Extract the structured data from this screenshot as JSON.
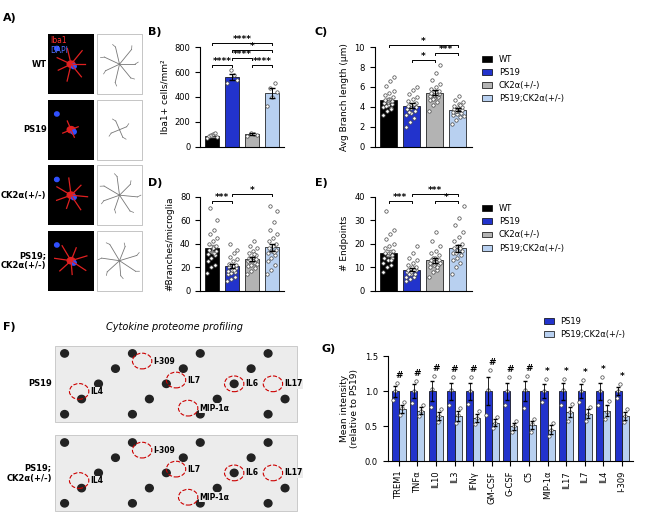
{
  "panels": {
    "A": {
      "title": "A)",
      "stains": [
        "Iba1",
        "DAPI"
      ],
      "rows": [
        "WT",
        "PS19",
        "CK2α(+/-)",
        "PS19;\nCK2α(+/-)"
      ]
    },
    "F": {
      "title": "F)",
      "subtitle": "Cytokine proteome profiling",
      "blots": [
        {
          "label": "PS19",
          "spots": [
            "IL4",
            "I-309",
            "IL7",
            "MIP-1α",
            "IL6",
            "IL17"
          ]
        },
        {
          "label": "PS19;\nCK2α(+/-)",
          "spots": [
            "IL4",
            "I-309",
            "IL7",
            "MIP-1α",
            "IL6",
            "IL17"
          ]
        }
      ]
    }
  },
  "chart_data": [
    {
      "type": "bar",
      "title": "B)",
      "ylabel": "Iba1+ cells/mm²",
      "categories": [
        null,
        null,
        null,
        null
      ],
      "tick_labels": "y",
      "ylim": [
        0,
        800
      ],
      "yticks": [
        0,
        200,
        400,
        600,
        800
      ],
      "series": [
        {
          "color": "#000000",
          "values": [
            90,
            null,
            null,
            null
          ],
          "errors": [
            15,
            null,
            null,
            null
          ],
          "points": [
            [
              70,
              85,
              95,
              105,
              110,
              80
            ],
            null,
            null,
            null
          ]
        },
        {
          "color": "#2233cc",
          "values": [
            null,
            560,
            null,
            null
          ],
          "errors": [
            null,
            25,
            null,
            null
          ],
          "points": [
            null,
            [
              510,
              540,
              575,
              615
            ],
            null,
            null
          ]
        },
        {
          "color": "#b3b3b3",
          "values": [
            null,
            null,
            100,
            null
          ],
          "errors": [
            null,
            null,
            8,
            null
          ],
          "points": [
            null,
            null,
            [
              90,
              98,
              105,
              112
            ],
            null
          ]
        },
        {
          "color": "#b8d0f0",
          "values": [
            null,
            null,
            null,
            430
          ],
          "errors": [
            null,
            null,
            null,
            40
          ],
          "points": [
            null,
            null,
            null,
            [
              330,
              400,
              440,
              470,
              510
            ]
          ]
        }
      ],
      "annotations": [
        {
          "from": 0,
          "to": 1,
          "label": "****"
        },
        {
          "from": 1,
          "to": 2,
          "label": "****"
        },
        {
          "from": 2,
          "to": 3,
          "label": "****"
        },
        {
          "from": 1,
          "to": 3,
          "label": "*"
        },
        {
          "from": 0,
          "to": 3,
          "label": "****"
        }
      ]
    },
    {
      "type": "bar",
      "title": "C)",
      "ylabel": "Avg Branch length (μm)",
      "categories": [
        null,
        null,
        null,
        null
      ],
      "tick_labels": "y",
      "legend": "upper left",
      "ylim": [
        0,
        10
      ],
      "yticks": [
        0,
        2,
        4,
        6,
        8,
        10
      ],
      "series": [
        {
          "name": "WT",
          "color": "#000000",
          "values": [
            4.7,
            null,
            null,
            null
          ],
          "errors": [
            0.2,
            null,
            null,
            null
          ],
          "points": [
            [
              3.2,
              3.6,
              3.9,
              4.0,
              4.2,
              4.3,
              4.4,
              4.5,
              4.6,
              4.7,
              4.8,
              5.0,
              5.2,
              5.4,
              5.6,
              6.1,
              6.6,
              7.0,
              4.1,
              3.8
            ],
            null,
            null,
            null
          ]
        },
        {
          "name": "PS19",
          "color": "#2233cc",
          "values": [
            null,
            4.1,
            null,
            null
          ],
          "errors": [
            null,
            0.25,
            null,
            null
          ],
          "points": [
            null,
            [
              2.0,
              2.5,
              2.9,
              3.2,
              3.4,
              3.6,
              3.8,
              3.9,
              4.0,
              4.1,
              4.2,
              4.4,
              4.6,
              4.8,
              5.0,
              5.3,
              5.7,
              6.0,
              3.5,
              4.3
            ],
            null,
            null
          ]
        },
        {
          "name": "CK2α(+/-)",
          "color": "#b3b3b3",
          "values": [
            null,
            null,
            5.4,
            null
          ],
          "errors": [
            null,
            null,
            0.25,
            null
          ],
          "points": [
            null,
            null,
            [
              3.6,
              4.2,
              4.5,
              4.7,
              4.9,
              5.0,
              5.1,
              5.2,
              5.3,
              5.4,
              5.5,
              5.6,
              5.8,
              6.0,
              6.3,
              6.7,
              7.4,
              8.2,
              4.8,
              5.2
            ],
            null
          ]
        },
        {
          "name": "PS19;CK2α(+/-)",
          "color": "#b8d0f0",
          "values": [
            null,
            null,
            null,
            3.7
          ],
          "errors": [
            null,
            null,
            null,
            0.15
          ],
          "points": [
            null,
            null,
            null,
            [
              2.3,
              2.7,
              3.0,
              3.2,
              3.3,
              3.4,
              3.5,
              3.6,
              3.7,
              3.8,
              3.9,
              4.0,
              4.1,
              4.3,
              4.5,
              4.7,
              5.1,
              3.1,
              3.6,
              4.2
            ]
          ]
        }
      ],
      "annotations": [
        {
          "from": 1,
          "to": 2,
          "label": "*"
        },
        {
          "from": 2,
          "to": 3,
          "label": "***"
        },
        {
          "from": 0,
          "to": 3,
          "label": "*"
        }
      ]
    },
    {
      "type": "bar",
      "title": "D)",
      "ylabel": "#Branches/microglia",
      "categories": [
        null,
        null,
        null,
        null
      ],
      "tick_labels": "y",
      "ylim": [
        0,
        80
      ],
      "yticks": [
        0,
        20,
        40,
        60,
        80
      ],
      "series": [
        {
          "color": "#000000",
          "values": [
            36,
            null,
            null,
            null
          ],
          "errors": [
            3,
            null,
            null,
            null
          ],
          "points": [
            [
              15,
              20,
              22,
              25,
              28,
              30,
              31,
              33,
              34,
              35,
              36,
              38,
              40,
              42,
              45,
              48,
              52,
              60,
              70,
              32
            ],
            null,
            null,
            null
          ]
        },
        {
          "color": "#2233cc",
          "values": [
            null,
            21,
            null,
            null
          ],
          "errors": [
            null,
            2,
            null,
            null
          ],
          "points": [
            null,
            [
              8,
              10,
              12,
              14,
              15,
              16,
              17,
              18,
              19,
              20,
              21,
              22,
              23,
              25,
              27,
              29,
              32,
              35,
              40,
              18
            ],
            null,
            null
          ]
        },
        {
          "color": "#b3b3b3",
          "values": [
            null,
            null,
            27,
            null
          ],
          "errors": [
            null,
            null,
            2,
            null
          ],
          "points": [
            null,
            null,
            [
              14,
              17,
              19,
              21,
              22,
              24,
              25,
              26,
              27,
              28,
              29,
              30,
              32,
              34,
              36,
              38,
              42,
              23,
              26,
              31
            ],
            null
          ]
        },
        {
          "color": "#b8d0f0",
          "values": [
            null,
            null,
            null,
            37
          ],
          "errors": [
            null,
            null,
            null,
            3
          ],
          "points": [
            null,
            null,
            null,
            [
              14,
              18,
              22,
              25,
              28,
              30,
              32,
              34,
              35,
              36,
              38,
              40,
              42,
              45,
              48,
              52,
              58,
              68,
              72,
              33
            ]
          ]
        }
      ],
      "annotations": [
        {
          "from": 0,
          "to": 1,
          "label": "***"
        },
        {
          "from": 1,
          "to": 3,
          "label": "*"
        }
      ]
    },
    {
      "type": "bar",
      "title": "E)",
      "ylabel": "# Endpoints",
      "categories": [
        null,
        null,
        null,
        null
      ],
      "tick_labels": "y",
      "legend": "upper left",
      "ylim": [
        0,
        40
      ],
      "yticks": [
        0,
        10,
        20,
        30,
        40
      ],
      "series": [
        {
          "name": "WT",
          "color": "#000000",
          "values": [
            16,
            null,
            null,
            null
          ],
          "errors": [
            1.3,
            null,
            null,
            null
          ],
          "points": [
            [
              8,
              10,
              11,
              12,
              13,
              14,
              14,
              15,
              15,
              16,
              16,
              17,
              18,
              19,
              20,
              22,
              24,
              26,
              34,
              13
            ],
            null,
            null,
            null
          ]
        },
        {
          "name": "PS19",
          "color": "#2233cc",
          "values": [
            null,
            9,
            null,
            null
          ],
          "errors": [
            null,
            0.8,
            null,
            null
          ],
          "points": [
            null,
            [
              4,
              5,
              6,
              6,
              7,
              7,
              8,
              8,
              9,
              9,
              10,
              10,
              11,
              12,
              13,
              14,
              16,
              19,
              7,
              9
            ],
            null,
            null
          ]
        },
        {
          "name": "CK2α(+/-)",
          "color": "#b3b3b3",
          "values": [
            null,
            null,
            13,
            null
          ],
          "errors": [
            null,
            null,
            1,
            null
          ],
          "points": [
            null,
            null,
            [
              6,
              8,
              9,
              10,
              11,
              11,
              12,
              12,
              13,
              13,
              14,
              15,
              16,
              17,
              19,
              21,
              25,
              12,
              14,
              10
            ],
            null
          ]
        },
        {
          "name": "PS19;CK2α(+/-)",
          "color": "#b8d0f0",
          "values": [
            null,
            null,
            null,
            18
          ],
          "errors": [
            null,
            null,
            null,
            1.4
          ],
          "points": [
            null,
            null,
            null,
            [
              7,
              10,
              12,
              13,
              14,
              15,
              16,
              17,
              17,
              18,
              19,
              20,
              21,
              23,
              25,
              28,
              31,
              36,
              16,
              18
            ]
          ]
        }
      ],
      "annotations": [
        {
          "from": 0,
          "to": 1,
          "label": "***"
        },
        {
          "from": 2,
          "to": 3,
          "label": "*"
        },
        {
          "from": 1,
          "to": 3,
          "label": "***"
        }
      ]
    },
    {
      "type": "grouped_bar",
      "title": "G)",
      "ylabel": "Mean intensity\n(relative to PS19)",
      "categories": [
        "TREM1",
        "TNFα",
        "IL10",
        "IL3",
        "IFNγ",
        "GM-CSF",
        "G-CSF",
        "C5",
        "MIP-1α",
        "IL17",
        "IL7",
        "IL4",
        "I-309"
      ],
      "legend": "upper right",
      "ylim": [
        0,
        1.5
      ],
      "yticks": [
        {
          "value": 0,
          "label": "0.0"
        },
        {
          "value": 0.5,
          "label": "0.5"
        },
        {
          "value": 1.0,
          "label": "1.0"
        },
        {
          "value": 1.5,
          "label": "1.5"
        }
      ],
      "series": [
        {
          "name": "PS19",
          "color": "#2233cc",
          "values": [
            1.0,
            1.0,
            1.0,
            1.0,
            1.0,
            1.0,
            1.0,
            1.0,
            1.0,
            1.0,
            1.0,
            1.0,
            1.0
          ],
          "errors": [
            0.08,
            0.1,
            0.14,
            0.12,
            0.12,
            0.2,
            0.12,
            0.14,
            0.1,
            0.12,
            0.1,
            0.12,
            0.06
          ],
          "points": [
            [
              0.87,
              1.0,
              1.12
            ],
            [
              0.83,
              1.0,
              1.15
            ],
            [
              0.78,
              1.03,
              1.22
            ],
            [
              0.8,
              1.02,
              1.2
            ],
            [
              0.82,
              1.0,
              1.2
            ],
            [
              0.66,
              1.02,
              1.3
            ],
            [
              0.8,
              1.0,
              1.2
            ],
            [
              0.76,
              1.02,
              1.22
            ],
            [
              0.84,
              1.0,
              1.17
            ],
            [
              0.8,
              1.02,
              1.18
            ],
            [
              0.84,
              1.0,
              1.16
            ],
            [
              0.8,
              1.0,
              1.2
            ],
            [
              0.9,
              1.0,
              1.1
            ]
          ]
        },
        {
          "name": "PS19;CK2α(+/-)",
          "color": "#b8d0f0",
          "values": [
            0.75,
            0.72,
            0.65,
            0.65,
            0.62,
            0.55,
            0.5,
            0.52,
            0.45,
            0.7,
            0.68,
            0.72,
            0.65
          ],
          "errors": [
            0.06,
            0.05,
            0.06,
            0.07,
            0.06,
            0.05,
            0.05,
            0.06,
            0.06,
            0.07,
            0.06,
            0.08,
            0.06
          ],
          "points": [
            [
              0.66,
              0.76,
              0.84
            ],
            [
              0.64,
              0.72,
              0.8
            ],
            [
              0.56,
              0.64,
              0.75
            ],
            [
              0.54,
              0.66,
              0.76
            ],
            [
              0.53,
              0.62,
              0.72
            ],
            [
              0.47,
              0.55,
              0.63
            ],
            [
              0.42,
              0.5,
              0.58
            ],
            [
              0.42,
              0.53,
              0.61
            ],
            [
              0.36,
              0.44,
              0.55
            ],
            [
              0.58,
              0.7,
              0.82
            ],
            [
              0.58,
              0.68,
              0.78
            ],
            [
              0.6,
              0.7,
              0.86
            ],
            [
              0.56,
              0.65,
              0.75
            ]
          ]
        }
      ],
      "annotations": [
        "#",
        "#",
        "#",
        "#",
        "#",
        "#",
        "#",
        "#",
        "*",
        "*",
        "*",
        "*",
        "*"
      ]
    }
  ]
}
